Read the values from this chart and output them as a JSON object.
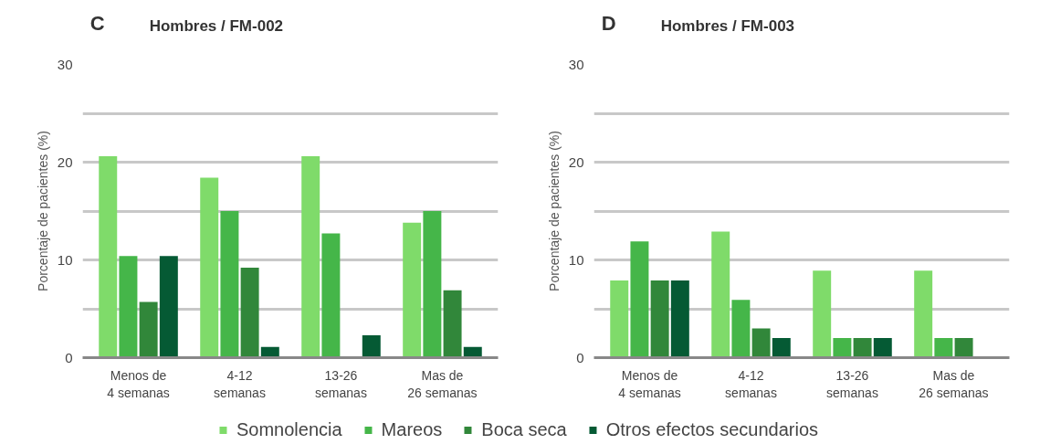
{
  "chart_data": [
    {
      "type": "bar",
      "title": "Hombres / FM-002",
      "ylabel": "Porcentaje de pacientes (%)",
      "annotations": [
        "C"
      ],
      "categories": [
        "Menos de\n4 semanas",
        "4-12\nsemanas",
        "13-26\nsemanas",
        "Mas de\n26 semanas"
      ],
      "series": [
        {
          "name": "Somnolencia",
          "color": "#7fdb6a",
          "values": [
            20.6,
            18.4,
            20.6,
            13.8
          ]
        },
        {
          "name": "Mareos",
          "color": "#45b649",
          "values": [
            10.4,
            15.0,
            12.7,
            15.0
          ]
        },
        {
          "name": "Boca seca",
          "color": "#31873a",
          "values": [
            5.7,
            9.2,
            0,
            6.9
          ]
        },
        {
          "name": "Otros efectos secundarios",
          "color": "#055a34",
          "values": [
            10.4,
            1.1,
            2.3,
            1.1
          ]
        }
      ],
      "ylim": [
        0,
        30
      ],
      "yticks": [
        0,
        {
          "value": 5,
          "label": null
        },
        10,
        {
          "value": 15,
          "label": null
        },
        20,
        {
          "value": 25,
          "label": null
        },
        30
      ],
      "grid": "y",
      "legend": "bottom"
    },
    {
      "type": "bar",
      "title": "Hombres / FM-003",
      "ylabel": "Porcentaje de pacientes (%)",
      "annotations": [
        "D"
      ],
      "categories": [
        "Menos de\n4 semanas",
        "4-12\nsemanas",
        "13-26\nsemanas",
        "Mas de\n26 semanas"
      ],
      "series": [
        {
          "name": "Somnolencia",
          "color": "#7fdb6a",
          "values": [
            7.9,
            12.9,
            8.9,
            8.9
          ]
        },
        {
          "name": "Mareos",
          "color": "#45b649",
          "values": [
            11.9,
            5.9,
            2.0,
            2.0
          ]
        },
        {
          "name": "Boca seca",
          "color": "#31873a",
          "values": [
            7.9,
            3.0,
            2.0,
            2.0
          ]
        },
        {
          "name": "Otros efectos secundarios",
          "color": "#055a34",
          "values": [
            7.9,
            2.0,
            2.0,
            0
          ]
        }
      ],
      "ylim": [
        0,
        30
      ],
      "yticks": [
        0,
        {
          "value": 5,
          "label": null
        },
        10,
        {
          "value": 15,
          "label": null
        },
        20,
        {
          "value": 25,
          "label": null
        },
        30
      ],
      "grid": "y",
      "legend": "bottom"
    }
  ]
}
